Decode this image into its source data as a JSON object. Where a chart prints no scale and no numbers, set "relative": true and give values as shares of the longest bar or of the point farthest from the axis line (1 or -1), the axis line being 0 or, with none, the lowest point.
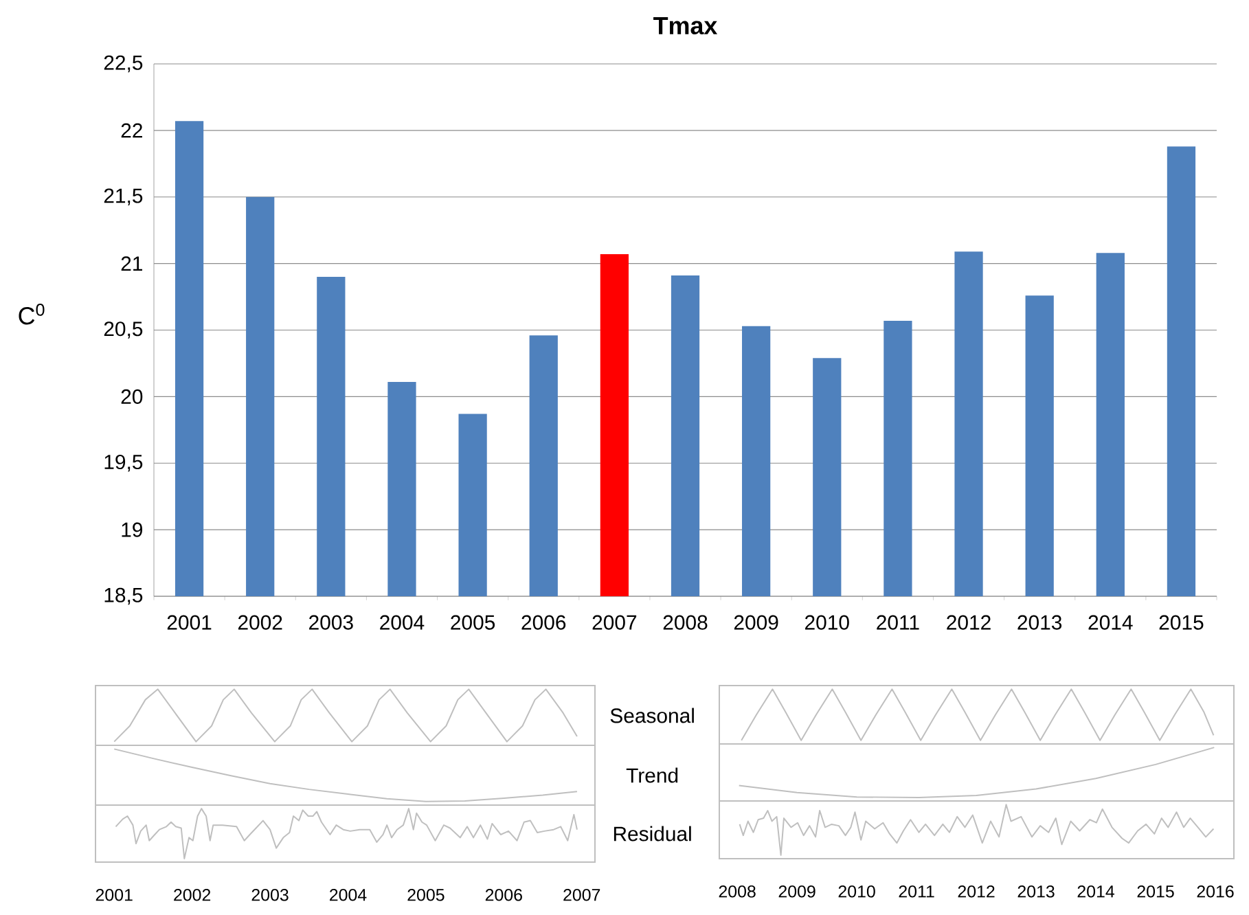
{
  "chart_data": [
    {
      "type": "bar",
      "title": "**Tmax**",
      "ylabel": "C$^{0}$",
      "categories": [
        "2001",
        "2002",
        "2003",
        "2004",
        "2005",
        "2006",
        "2007",
        "2008",
        "2009",
        "2010",
        "2011",
        "2012",
        "2013",
        "2014",
        "2015"
      ],
      "values": [
        22.07,
        21.5,
        20.9,
        20.11,
        19.87,
        20.46,
        21.07,
        20.91,
        20.53,
        20.29,
        20.57,
        21.09,
        20.76,
        21.08,
        21.88
      ],
      "colors": [
        "#4f81bd",
        "#4f81bd",
        "#4f81bd",
        "#4f81bd",
        "#4f81bd",
        "#4f81bd",
        "#ff0000",
        "#4f81bd",
        "#4f81bd",
        "#4f81bd",
        "#4f81bd",
        "#4f81bd",
        "#4f81bd",
        "#4f81bd",
        "#4f81bd"
      ],
      "ylim": [
        18.5,
        22.5
      ],
      "yticks": [
        {
          "value": 18.5,
          "label": "18,5"
        },
        19,
        {
          "value": 19.5,
          "label": "19,5"
        },
        20,
        {
          "value": 20.5,
          "label": "20,5"
        },
        21,
        {
          "value": 21.5,
          "label": "21,5"
        },
        22,
        {
          "value": 22.5,
          "label": "22,5"
        }
      ],
      "grid": "y"
    },
    {
      "type": "line",
      "relative": true,
      "ylabel": "Seasonal",
      "color": "#bfbfbf",
      "xlim": [
        2000.76,
        2007.17
      ],
      "tick_labels": false,
      "x": [
        2001.0,
        2001.2,
        2001.4,
        2001.56,
        2001.78,
        2002.05,
        2002.25,
        2002.4,
        2002.54,
        2002.76,
        2003.06,
        2003.26,
        2003.4,
        2003.54,
        2003.76,
        2004.05,
        2004.25,
        2004.4,
        2004.54,
        2004.76,
        2005.06,
        2005.26,
        2005.41,
        2005.55,
        2005.77,
        2006.04,
        2006.24,
        2006.4,
        2006.54,
        2006.76,
        2006.94
      ],
      "values": [
        0,
        0.3,
        0.8,
        1,
        0.55,
        0,
        0.3,
        0.8,
        1,
        0.55,
        0,
        0.3,
        0.8,
        1,
        0.55,
        0,
        0.3,
        0.8,
        1,
        0.55,
        0,
        0.3,
        0.8,
        1,
        0.55,
        0,
        0.3,
        0.8,
        1,
        0.55,
        0.1
      ]
    },
    {
      "type": "line",
      "relative": true,
      "ylabel": "Trend",
      "color": "#bfbfbf",
      "xlim": [
        2000.76,
        2007.17
      ],
      "tick_labels": false,
      "x": [
        2001.0,
        2001.5,
        2002.0,
        2002.5,
        2003.0,
        2003.5,
        2004.0,
        2004.5,
        2005.0,
        2005.5,
        2006.0,
        2006.5,
        2006.94
      ],
      "values": [
        1,
        0.82,
        0.65,
        0.49,
        0.34,
        0.23,
        0.14,
        0.05,
        0,
        0.01,
        0.06,
        0.12,
        0.19
      ]
    },
    {
      "type": "line",
      "relative": true,
      "ylabel": "Residual",
      "color": "#bfbfbf",
      "xlim": [
        2000.76,
        2007.17
      ],
      "xticks": [
        2001,
        2002,
        2003,
        2004,
        2005,
        2006,
        2007
      ],
      "tick_labels": "x",
      "x": [
        2001.02,
        2001.11,
        2001.17,
        2001.24,
        2001.28,
        2001.34,
        2001.41,
        2001.45,
        2001.52,
        2001.58,
        2001.67,
        2001.73,
        2001.79,
        2001.86,
        2001.9,
        2001.96,
        2002.01,
        2002.07,
        2002.12,
        2002.18,
        2002.23,
        2002.27,
        2002.39,
        2002.57,
        2002.67,
        2002.74,
        2002.82,
        2002.91,
        2003.0,
        2003.08,
        2003.17,
        2003.25,
        2003.3,
        2003.37,
        2003.42,
        2003.49,
        2003.55,
        2003.6,
        2003.66,
        2003.77,
        2003.85,
        2003.94,
        2004.03,
        2004.15,
        2004.28,
        2004.37,
        2004.45,
        2004.5,
        2004.56,
        2004.63,
        2004.71,
        2004.78,
        2004.84,
        2004.88,
        2004.95,
        2005.01,
        2005.12,
        2005.23,
        2005.31,
        2005.44,
        2005.53,
        2005.61,
        2005.7,
        2005.79,
        2005.85,
        2005.96,
        2006.06,
        2006.17,
        2006.26,
        2006.34,
        2006.43,
        2006.52,
        2006.64,
        2006.73,
        2006.82,
        2006.9,
        2006.94
      ],
      "values": [
        0.64,
        0.79,
        0.85,
        0.67,
        0.3,
        0.55,
        0.67,
        0.36,
        0.48,
        0.58,
        0.64,
        0.73,
        0.64,
        0.61,
        0,
        0.42,
        0.36,
        0.85,
        1,
        0.85,
        0.36,
        0.67,
        0.67,
        0.64,
        0.36,
        0.48,
        0.61,
        0.76,
        0.58,
        0.21,
        0.42,
        0.52,
        0.85,
        0.76,
        0.97,
        0.85,
        0.85,
        0.94,
        0.73,
        0.48,
        0.67,
        0.58,
        0.55,
        0.58,
        0.58,
        0.33,
        0.48,
        0.67,
        0.42,
        0.58,
        0.67,
        1,
        0.58,
        0.91,
        0.73,
        0.67,
        0.36,
        0.67,
        0.61,
        0.42,
        0.64,
        0.42,
        0.67,
        0.39,
        0.7,
        0.48,
        0.55,
        0.36,
        0.73,
        0.76,
        0.52,
        0.55,
        0.58,
        0.64,
        0.36,
        0.88,
        0.58
      ]
    },
    {
      "type": "line",
      "relative": true,
      "color": "#bfbfbf",
      "xlim": [
        2007.7,
        2016.31
      ],
      "tick_labels": false,
      "x": [
        2008.07,
        2008.32,
        2008.59,
        2008.81,
        2009.07,
        2009.32,
        2009.59,
        2009.81,
        2010.07,
        2010.32,
        2010.59,
        2010.81,
        2011.07,
        2011.32,
        2011.59,
        2011.81,
        2012.07,
        2012.32,
        2012.59,
        2012.81,
        2013.07,
        2013.32,
        2013.59,
        2013.81,
        2014.07,
        2014.32,
        2014.59,
        2014.81,
        2015.07,
        2015.32,
        2015.59,
        2015.81,
        2015.97
      ],
      "values": [
        0,
        0.5,
        1,
        0.55,
        0,
        0.5,
        1,
        0.55,
        0,
        0.5,
        1,
        0.55,
        0,
        0.5,
        1,
        0.55,
        0,
        0.5,
        1,
        0.55,
        0,
        0.5,
        1,
        0.55,
        0,
        0.5,
        1,
        0.55,
        0,
        0.5,
        1,
        0.55,
        0.1
      ]
    },
    {
      "type": "line",
      "relative": true,
      "color": "#bfbfbf",
      "xlim": [
        2007.7,
        2016.31
      ],
      "tick_labels": false,
      "x": [
        2008.03,
        2009.0,
        2010.0,
        2011.04,
        2012.0,
        2013.0,
        2014.0,
        2015.0,
        2015.98
      ],
      "values": [
        0.24,
        0.1,
        0.01,
        0,
        0.04,
        0.17,
        0.38,
        0.66,
        1
      ]
    },
    {
      "type": "line",
      "relative": true,
      "color": "#bfbfbf",
      "xlim": [
        2007.7,
        2016.31
      ],
      "xticks": [
        2008,
        2009,
        2010,
        2011,
        2012,
        2013,
        2014,
        2015,
        2016
      ],
      "tick_labels": "x",
      "x": [
        2008.04,
        2008.1,
        2008.18,
        2008.27,
        2008.35,
        2008.44,
        2008.51,
        2008.58,
        2008.66,
        2008.73,
        2008.78,
        2008.9,
        2009.01,
        2009.11,
        2009.21,
        2009.31,
        2009.38,
        2009.47,
        2009.58,
        2009.7,
        2009.81,
        2009.9,
        2009.97,
        2010.07,
        2010.15,
        2010.3,
        2010.44,
        2010.55,
        2010.67,
        2010.78,
        2010.9,
        2011.04,
        2011.15,
        2011.3,
        2011.44,
        2011.55,
        2011.68,
        2011.81,
        2011.94,
        2012.1,
        2012.24,
        2012.38,
        2012.5,
        2012.58,
        2012.75,
        2012.93,
        2013.07,
        2013.21,
        2013.33,
        2013.43,
        2013.58,
        2013.73,
        2013.9,
        2014.01,
        2014.11,
        2014.27,
        2014.44,
        2014.55,
        2014.7,
        2014.84,
        2014.98,
        2015.1,
        2015.21,
        2015.35,
        2015.47,
        2015.58,
        2015.73,
        2015.84,
        2015.97
      ],
      "values": [
        0.61,
        0.39,
        0.67,
        0.45,
        0.7,
        0.73,
        0.88,
        0.67,
        0.76,
        0,
        0.73,
        0.55,
        0.64,
        0.39,
        0.58,
        0.36,
        0.88,
        0.55,
        0.61,
        0.58,
        0.39,
        0.55,
        0.85,
        0.3,
        0.67,
        0.52,
        0.64,
        0.42,
        0.24,
        0.48,
        0.7,
        0.45,
        0.61,
        0.39,
        0.61,
        0.45,
        0.76,
        0.55,
        0.79,
        0.24,
        0.67,
        0.36,
        1,
        0.67,
        0.76,
        0.36,
        0.58,
        0.45,
        0.73,
        0.21,
        0.67,
        0.48,
        0.7,
        0.64,
        0.91,
        0.55,
        0.33,
        0.24,
        0.48,
        0.61,
        0.42,
        0.73,
        0.55,
        0.85,
        0.55,
        0.73,
        0.52,
        0.36,
        0.52
      ]
    }
  ]
}
